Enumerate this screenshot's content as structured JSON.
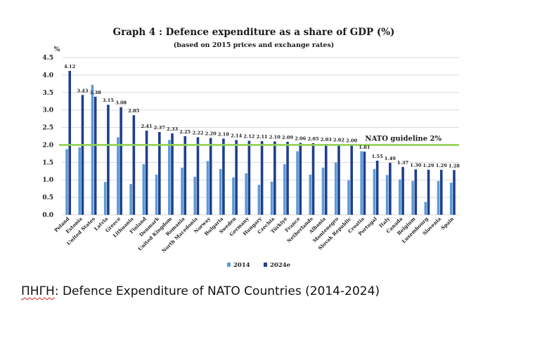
{
  "source": {
    "prefix": "ΠΗΓΗ",
    "text": ": Defence Expenditure of NATO Countries (2014-2024)"
  },
  "colors": {
    "series_2014": "#5b9bd5",
    "series_2024e": "#1f3f8f",
    "guideline": "#92d050",
    "grid": "#d9d9d9"
  },
  "chart_data": {
    "type": "bar",
    "title": "Graph 4 : Defence expenditure as a share of GDP (%)",
    "subtitle": "(based on 2015 prices and exchange rates)",
    "ylabel": "%",
    "ylim": [
      0,
      4.5
    ],
    "yticks": [
      "0.0",
      "0.5",
      "1.0",
      "1.5",
      "2.0",
      "2.5",
      "3.0",
      "3.5",
      "4.0",
      "4.5"
    ],
    "grid": true,
    "legend_position": "bottom",
    "guideline": {
      "value": 2.0,
      "label": "NATO guideline 2%"
    },
    "categories": [
      "Poland",
      "Estonia",
      "United States",
      "Latvia",
      "Greece",
      "Lithuania",
      "Finland",
      "Denmark",
      "United Kingdom",
      "Romania",
      "North Macedonia",
      "Norway",
      "Bulgaria",
      "Sweden",
      "Germany",
      "Hungary",
      "Czechia",
      "Türkiye",
      "France",
      "Netherlands",
      "Albania",
      "Montenegro",
      "Slovak Republic",
      "Croatia",
      "Portugal",
      "Italy",
      "Canada",
      "Belgium",
      "Luxembourg",
      "Slovenia",
      "Spain"
    ],
    "series": [
      {
        "name": "2014",
        "values": [
          1.88,
          1.93,
          3.72,
          0.94,
          2.22,
          0.88,
          1.45,
          1.15,
          2.14,
          1.35,
          1.09,
          1.54,
          1.31,
          1.07,
          1.19,
          0.86,
          0.95,
          1.45,
          1.82,
          1.15,
          1.35,
          1.5,
          0.99,
          1.82,
          1.31,
          1.14,
          1.01,
          0.97,
          0.37,
          0.97,
          0.92
        ]
      },
      {
        "name": "2024e",
        "values": [
          4.12,
          3.43,
          3.38,
          3.15,
          3.08,
          2.85,
          2.41,
          2.37,
          2.33,
          2.25,
          2.22,
          2.2,
          2.18,
          2.14,
          2.12,
          2.11,
          2.1,
          2.09,
          2.06,
          2.05,
          2.03,
          2.02,
          2.0,
          1.81,
          1.55,
          1.49,
          1.37,
          1.3,
          1.29,
          1.29,
          1.28
        ],
        "labels": [
          "4.12",
          "3.43",
          "3.38",
          "3.15",
          "3.08",
          "2.85",
          "2.41",
          "2.37",
          "2.33",
          "2.25",
          "2.22",
          "2.20",
          "2.18",
          "2.14",
          "2.12",
          "2.11",
          "2.10",
          "2.09",
          "2.06",
          "2.05",
          "2.03",
          "2.02",
          "2.00",
          "1.81",
          "1.55",
          "1.49",
          "1.37",
          "1.30",
          "1.29",
          "1.29",
          "1.28"
        ]
      }
    ]
  }
}
